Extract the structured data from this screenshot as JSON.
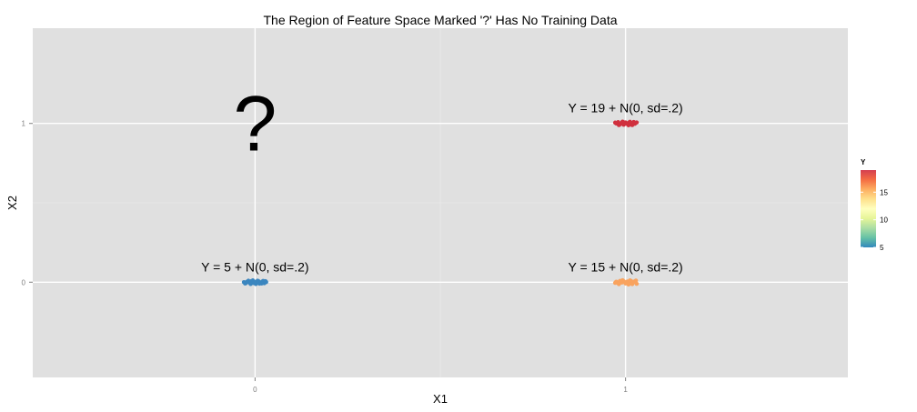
{
  "chart_data": {
    "type": "scatter",
    "title": "The Region of Feature Space Marked '?' Has No Training Data",
    "xlabel": "X1",
    "ylabel": "X2",
    "xlim": [
      -0.6,
      1.6
    ],
    "ylim": [
      -0.6,
      1.6
    ],
    "x_ticks": [
      0,
      1
    ],
    "x_tick_labels": [
      "0",
      "1"
    ],
    "y_ticks": [
      0,
      1
    ],
    "y_tick_labels": [
      "0",
      "1"
    ],
    "grid": true,
    "legend": {
      "title": "Y",
      "position": "right",
      "scale": "continuous",
      "min": 5,
      "max": 19,
      "ticks": [
        5,
        10,
        15
      ],
      "tick_labels": [
        "5",
        "10",
        "15"
      ],
      "colors": [
        "#3288BD",
        "#66C2A5",
        "#ABDDA4",
        "#E6F598",
        "#FFFFBF",
        "#FEE08B",
        "#FDAE61",
        "#F46D43",
        "#D53E4F"
      ]
    },
    "clusters": [
      {
        "center": [
          0,
          0
        ],
        "y_value": 5,
        "label": "Y = 5 + N(0, sd=.2)",
        "color": "#3B86BF",
        "points": [
          [
            -0.03,
            0.0
          ],
          [
            -0.025,
            -0.006
          ],
          [
            -0.02,
            0.004
          ],
          [
            -0.015,
            -0.003
          ],
          [
            -0.01,
            0.006
          ],
          [
            -0.005,
            -0.005
          ],
          [
            0.0,
            0.002
          ],
          [
            0.005,
            -0.004
          ],
          [
            0.01,
            0.005
          ],
          [
            0.015,
            -0.002
          ],
          [
            0.02,
            0.004
          ],
          [
            0.025,
            -0.006
          ],
          [
            0.03,
            0.001
          ],
          [
            -0.018,
            0.009
          ],
          [
            0.012,
            -0.009
          ],
          [
            -0.006,
            0.011
          ],
          [
            0.022,
            0.008
          ],
          [
            -0.027,
            -0.008
          ],
          [
            0.002,
            -0.011
          ],
          [
            0.007,
            0.009
          ],
          [
            -0.012,
            -0.011
          ],
          [
            0.018,
            -0.008
          ],
          [
            -0.022,
            0.002
          ],
          [
            0.028,
            0.006
          ],
          [
            -0.002,
            0.0
          ]
        ]
      },
      {
        "center": [
          1,
          0
        ],
        "y_value": 15,
        "label": "Y = 15 + N(0, sd=.2)",
        "color": "#F9A35E",
        "points": [
          [
            -0.025,
            0.003
          ],
          [
            -0.02,
            -0.006
          ],
          [
            -0.015,
            0.008
          ],
          [
            -0.01,
            -0.002
          ],
          [
            -0.005,
            0.006
          ],
          [
            0.0,
            -0.008
          ],
          [
            0.005,
            0.004
          ],
          [
            0.01,
            -0.005
          ],
          [
            0.015,
            0.007
          ],
          [
            0.02,
            -0.003
          ],
          [
            0.025,
            0.005
          ],
          [
            0.03,
            -0.01
          ],
          [
            -0.018,
            -0.012
          ],
          [
            0.012,
            0.011
          ],
          [
            -0.008,
            0.012
          ],
          [
            0.018,
            -0.012
          ],
          [
            0.002,
            0.0
          ],
          [
            -0.028,
            -0.004
          ],
          [
            0.008,
            -0.014
          ],
          [
            0.022,
            0.002
          ],
          [
            -0.012,
            0.004
          ],
          [
            0.028,
            0.01
          ]
        ]
      },
      {
        "center": [
          1,
          1
        ],
        "y_value": 19,
        "label": "Y = 19 + N(0, sd=.2)",
        "color": "#D0303E",
        "points": [
          [
            -0.025,
            0.0
          ],
          [
            -0.02,
            0.008
          ],
          [
            -0.015,
            -0.006
          ],
          [
            -0.01,
            0.005
          ],
          [
            -0.005,
            -0.008
          ],
          [
            0.0,
            0.006
          ],
          [
            0.005,
            -0.004
          ],
          [
            0.01,
            0.007
          ],
          [
            0.015,
            -0.006
          ],
          [
            0.02,
            0.003
          ],
          [
            0.025,
            -0.002
          ],
          [
            0.03,
            0.006
          ],
          [
            -0.018,
            -0.01
          ],
          [
            0.012,
            0.01
          ],
          [
            -0.008,
            0.011
          ],
          [
            0.018,
            -0.01
          ],
          [
            0.002,
            -0.001
          ],
          [
            -0.028,
            0.005
          ],
          [
            0.022,
            0.009
          ],
          [
            0.008,
            -0.011
          ]
        ]
      }
    ],
    "annotations": [
      {
        "text": "?",
        "x": 0,
        "y": 1
      }
    ]
  }
}
